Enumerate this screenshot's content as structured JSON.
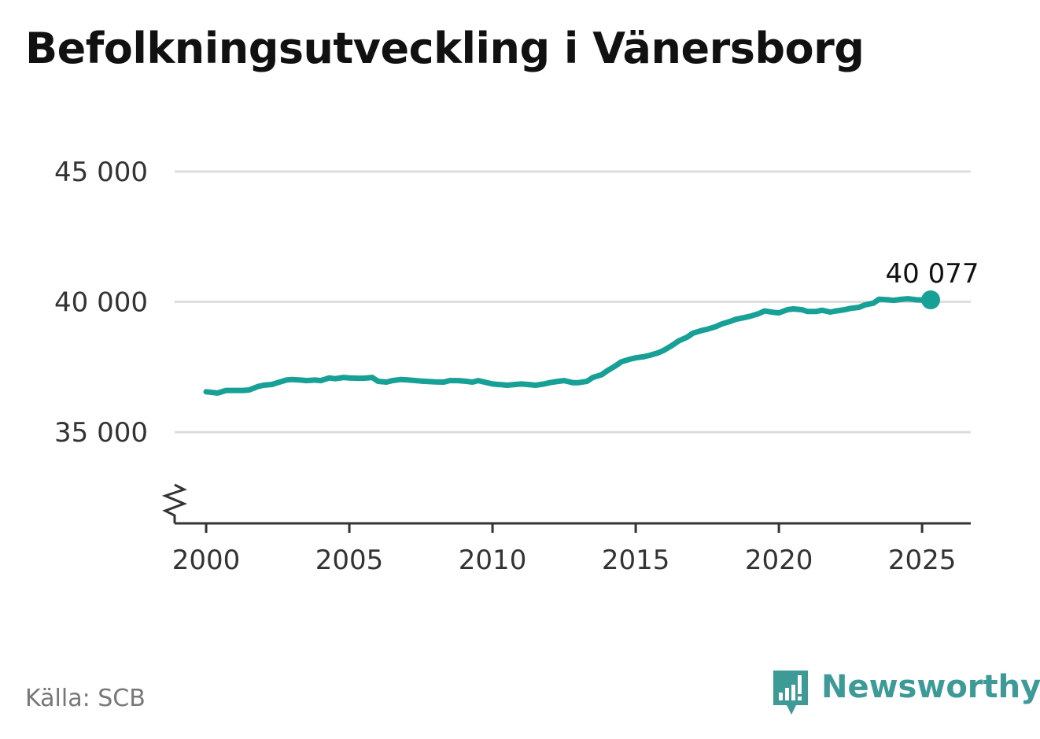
{
  "title": "Befolkningsutveckling i Vänersborg",
  "source": "Källa: SCB",
  "brand": "Newsworthy",
  "colors": {
    "line": "#17a096",
    "grid": "#dddddd",
    "axis": "#333333",
    "brand": "#3d9a96"
  },
  "chart_data": {
    "type": "line",
    "title": "Befolkningsutveckling i Vänersborg",
    "xlabel": "",
    "ylabel": "",
    "xlim": [
      1998.9,
      2026.7
    ],
    "ylim": [
      31500,
      45000
    ],
    "y_axis_break": true,
    "grid": "horizontal",
    "y_ticks": [
      35000,
      40000,
      45000
    ],
    "y_tick_labels": [
      "35 000",
      "40 000",
      "45 000"
    ],
    "x_ticks": [
      2000,
      2005,
      2010,
      2015,
      2020,
      2025
    ],
    "x_tick_labels": [
      "2000",
      "2005",
      "2010",
      "2015",
      "2020",
      "2025"
    ],
    "end_label": "40 077",
    "series": [
      {
        "x": [
          2000.0,
          2000.4,
          2000.7,
          2001.0,
          2001.3,
          2001.5,
          2001.8,
          2002.0,
          2002.3,
          2002.5,
          2002.8,
          2003.0,
          2003.3,
          2003.5,
          2003.8,
          2004.0,
          2004.3,
          2004.5,
          2004.8,
          2005.0,
          2005.3,
          2005.5,
          2005.8,
          2006.0,
          2006.3,
          2006.5,
          2006.8,
          2007.0,
          2007.5,
          2008.0,
          2008.3,
          2008.5,
          2008.8,
          2009.0,
          2009.3,
          2009.5,
          2009.8,
          2010.0,
          2010.3,
          2010.5,
          2010.8,
          2011.0,
          2011.3,
          2011.5,
          2011.8,
          2012.0,
          2012.3,
          2012.5,
          2012.8,
          2013.0,
          2013.3,
          2013.5,
          2013.8,
          2014.0,
          2014.3,
          2014.5,
          2014.8,
          2015.0,
          2015.3,
          2015.5,
          2015.8,
          2016.0,
          2016.3,
          2016.5,
          2016.8,
          2017.0,
          2017.3,
          2017.5,
          2017.8,
          2018.0,
          2018.3,
          2018.5,
          2018.8,
          2019.0,
          2019.3,
          2019.5,
          2019.8,
          2020.0,
          2020.3,
          2020.5,
          2020.8,
          2021.0,
          2021.3,
          2021.5,
          2021.8,
          2022.0,
          2022.3,
          2022.5,
          2022.8,
          2023.0,
          2023.3,
          2023.5,
          2023.8,
          2024.0,
          2024.3,
          2024.5,
          2024.8,
          2025.0,
          2025.3
        ],
        "values": [
          36550,
          36500,
          36600,
          36600,
          36600,
          36620,
          36750,
          36800,
          36830,
          36900,
          37000,
          37020,
          37000,
          36980,
          37000,
          36980,
          37080,
          37050,
          37100,
          37080,
          37070,
          37070,
          37100,
          36950,
          36920,
          36980,
          37020,
          37010,
          36960,
          36930,
          36920,
          36980,
          36980,
          36960,
          36920,
          36980,
          36900,
          36850,
          36820,
          36800,
          36830,
          36850,
          36820,
          36800,
          36850,
          36900,
          36950,
          36980,
          36900,
          36900,
          36950,
          37100,
          37200,
          37350,
          37550,
          37700,
          37800,
          37850,
          37900,
          37950,
          38050,
          38150,
          38350,
          38500,
          38650,
          38800,
          38900,
          38950,
          39050,
          39150,
          39250,
          39330,
          39400,
          39450,
          39550,
          39650,
          39600,
          39580,
          39700,
          39730,
          39700,
          39630,
          39630,
          39680,
          39610,
          39650,
          39700,
          39750,
          39790,
          39880,
          39950,
          40100,
          40080,
          40060,
          40100,
          40120,
          40080,
          40070,
          40077
        ]
      }
    ]
  }
}
